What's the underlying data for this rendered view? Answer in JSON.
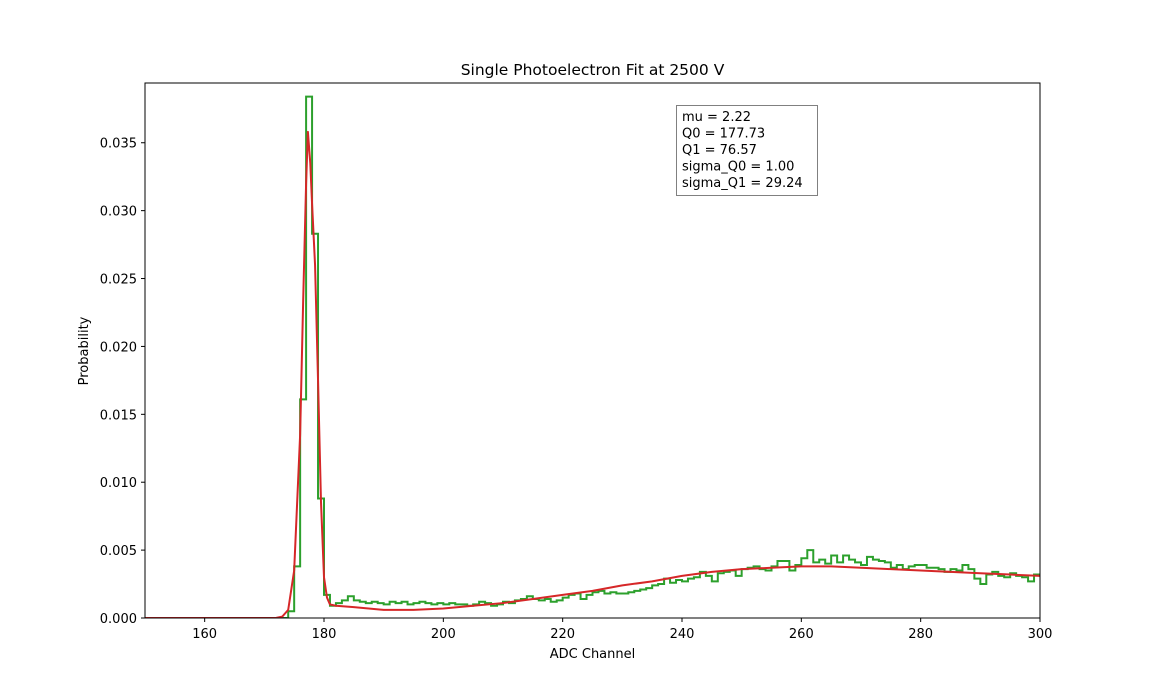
{
  "chart_data": {
    "type": "line",
    "title": "Single Photoelectron Fit at 2500 V",
    "xlabel": "ADC Channel",
    "ylabel": "Probability",
    "xlim": [
      150,
      300
    ],
    "ylim": [
      0,
      0.0394
    ],
    "xticks": [
      160,
      180,
      200,
      220,
      240,
      260,
      280,
      300
    ],
    "yticks": [
      0.0,
      0.005,
      0.01,
      0.015,
      0.02,
      0.025,
      0.03,
      0.035
    ],
    "ytick_labels": [
      "0.000",
      "0.005",
      "0.010",
      "0.015",
      "0.020",
      "0.025",
      "0.030",
      "0.035"
    ],
    "grid": false,
    "annotation": {
      "position": "top-right",
      "lines": [
        "mu = 2.22",
        "Q0 = 177.73",
        "Q1 = 76.57",
        "sigma_Q0 = 1.00",
        "sigma_Q1 = 29.24"
      ]
    },
    "series": [
      {
        "kind": "histogram-step",
        "color": "#2ca02c",
        "bin_edges_start": 150,
        "bin_width": 1,
        "values": [
          0,
          0,
          0,
          0,
          0,
          0,
          0,
          0,
          0,
          0,
          0,
          0,
          0,
          0,
          0,
          0,
          0,
          0,
          0,
          0,
          0,
          0,
          0,
          0,
          0.0005,
          0.0038,
          0.0161,
          0.0384,
          0.0283,
          0.0088,
          0.0017,
          0.0009,
          0.0011,
          0.0013,
          0.0016,
          0.0013,
          0.0012,
          0.0011,
          0.0012,
          0.0011,
          0.001,
          0.0012,
          0.0011,
          0.0012,
          0.001,
          0.0011,
          0.0012,
          0.0011,
          0.001,
          0.0011,
          0.001,
          0.0011,
          0.001,
          0.001,
          0.0009,
          0.001,
          0.0012,
          0.0011,
          0.0009,
          0.001,
          0.0012,
          0.0011,
          0.0013,
          0.0014,
          0.0016,
          0.0014,
          0.0013,
          0.0014,
          0.0012,
          0.0013,
          0.0015,
          0.0017,
          0.0018,
          0.0014,
          0.0017,
          0.0019,
          0.002,
          0.0018,
          0.0019,
          0.0018,
          0.0018,
          0.0019,
          0.002,
          0.0021,
          0.0022,
          0.0024,
          0.0025,
          0.0029,
          0.0026,
          0.0028,
          0.0027,
          0.0029,
          0.003,
          0.0034,
          0.0031,
          0.0027,
          0.0033,
          0.0034,
          0.0035,
          0.0031,
          0.0036,
          0.0037,
          0.0038,
          0.0036,
          0.0035,
          0.0038,
          0.0042,
          0.0042,
          0.0035,
          0.0039,
          0.0044,
          0.005,
          0.0041,
          0.0043,
          0.004,
          0.0046,
          0.0041,
          0.0046,
          0.0043,
          0.0041,
          0.0039,
          0.0045,
          0.0043,
          0.0042,
          0.0041,
          0.0037,
          0.0039,
          0.0036,
          0.0038,
          0.0039,
          0.0039,
          0.0037,
          0.0037,
          0.0036,
          0.0034,
          0.0036,
          0.0035,
          0.0039,
          0.0036,
          0.0029,
          0.0025,
          0.0032,
          0.0034,
          0.0031,
          0.003,
          0.0033,
          0.0031,
          0.003,
          0.0027,
          0.0032
        ]
      },
      {
        "kind": "fit-curve",
        "color": "#d62728",
        "points": [
          [
            150,
            0
          ],
          [
            170,
            0
          ],
          [
            172,
            1e-05
          ],
          [
            173,
            0.0001
          ],
          [
            174,
            0.0006
          ],
          [
            175,
            0.0035
          ],
          [
            176,
            0.0135
          ],
          [
            176.5,
            0.0232
          ],
          [
            177,
            0.032
          ],
          [
            177.3,
            0.0358
          ],
          [
            177.7,
            0.0335
          ],
          [
            178,
            0.0305
          ],
          [
            178.5,
            0.026
          ],
          [
            179,
            0.0175
          ],
          [
            179.5,
            0.0085
          ],
          [
            180,
            0.003
          ],
          [
            180.5,
            0.0015
          ],
          [
            181,
            0.001
          ],
          [
            182,
            0.0009
          ],
          [
            185,
            0.0008
          ],
          [
            190,
            0.0006
          ],
          [
            195,
            0.0006
          ],
          [
            200,
            0.0007
          ],
          [
            205,
            0.0009
          ],
          [
            210,
            0.0011
          ],
          [
            215,
            0.0014
          ],
          [
            220,
            0.0017
          ],
          [
            225,
            0.002
          ],
          [
            230,
            0.0024
          ],
          [
            235,
            0.0027
          ],
          [
            240,
            0.0031
          ],
          [
            245,
            0.0034
          ],
          [
            250,
            0.0036
          ],
          [
            255,
            0.0037
          ],
          [
            260,
            0.0038
          ],
          [
            265,
            0.0038
          ],
          [
            270,
            0.0037
          ],
          [
            275,
            0.0036
          ],
          [
            280,
            0.0035
          ],
          [
            285,
            0.0034
          ],
          [
            290,
            0.0033
          ],
          [
            295,
            0.0032
          ],
          [
            300,
            0.0031
          ]
        ]
      }
    ]
  }
}
